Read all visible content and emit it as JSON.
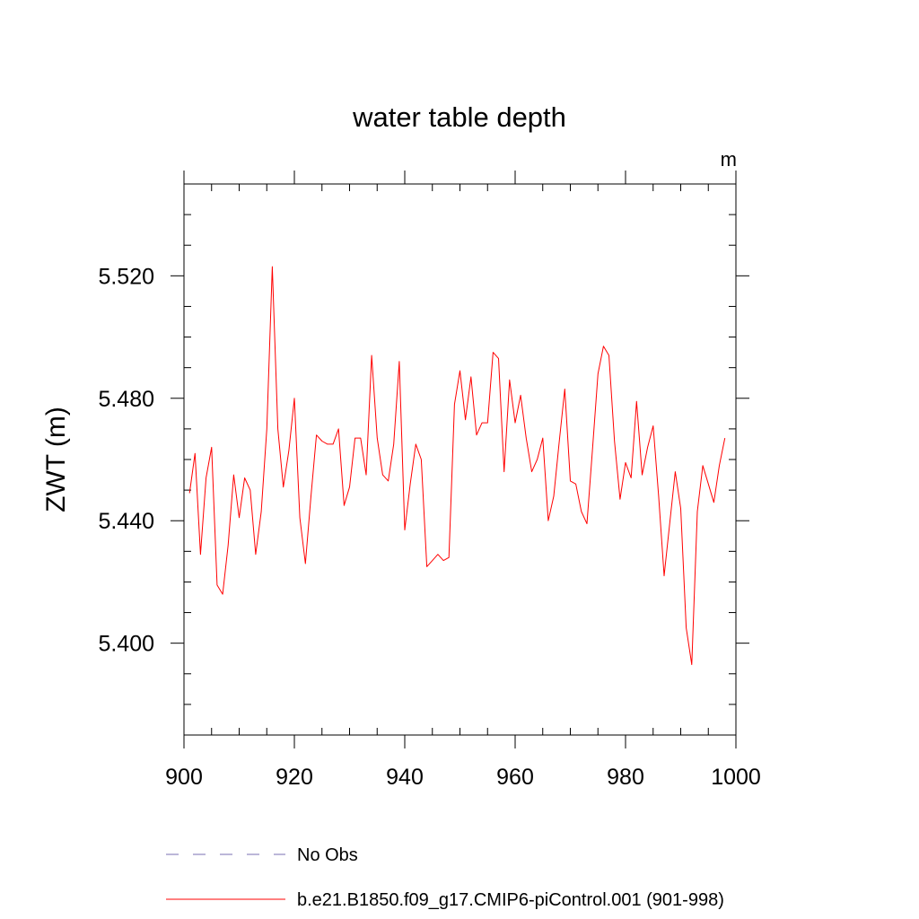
{
  "chart_data": {
    "type": "line",
    "title": "water table depth",
    "units": "m",
    "xlabel": "",
    "ylabel": "ZWT  (m)",
    "xlim": [
      900,
      1000
    ],
    "ylim": [
      5.37,
      5.55
    ],
    "x_ticks": [
      900,
      920,
      940,
      960,
      980,
      1000
    ],
    "x_tick_labels": [
      "900",
      "920",
      "940",
      "960",
      "980",
      "1000"
    ],
    "y_ticks": [
      5.4,
      5.44,
      5.48,
      5.52
    ],
    "y_tick_labels": [
      "5.400",
      "5.440",
      "5.480",
      "5.520"
    ],
    "grid": false,
    "legend_position": "bottom",
    "series": [
      {
        "name": "No Obs",
        "color": "#7a6fb3",
        "style": "dashed",
        "x": [],
        "y": []
      },
      {
        "name": "b.e21.B1850.f09_g17.CMIP6-piControl.001 (901-998)",
        "color": "#ff0000",
        "style": "solid",
        "x": [
          901,
          902,
          903,
          904,
          905,
          906,
          907,
          908,
          909,
          910,
          911,
          912,
          913,
          914,
          915,
          916,
          917,
          918,
          919,
          920,
          921,
          922,
          923,
          924,
          925,
          926,
          927,
          928,
          929,
          930,
          931,
          932,
          933,
          934,
          935,
          936,
          937,
          938,
          939,
          940,
          941,
          942,
          943,
          944,
          945,
          946,
          947,
          948,
          949,
          950,
          951,
          952,
          953,
          954,
          955,
          956,
          957,
          958,
          959,
          960,
          961,
          962,
          963,
          964,
          965,
          966,
          967,
          968,
          969,
          970,
          971,
          972,
          973,
          974,
          975,
          976,
          977,
          978,
          979,
          980,
          981,
          982,
          983,
          984,
          985,
          986,
          987,
          988,
          989,
          990,
          991,
          992,
          993,
          994,
          995,
          996,
          997,
          998
        ],
        "y": [
          5.449,
          5.462,
          5.429,
          5.454,
          5.464,
          5.419,
          5.416,
          5.432,
          5.455,
          5.441,
          5.454,
          5.45,
          5.429,
          5.443,
          5.47,
          5.523,
          5.47,
          5.451,
          5.463,
          5.48,
          5.441,
          5.426,
          5.448,
          5.468,
          5.466,
          5.465,
          5.465,
          5.47,
          5.445,
          5.451,
          5.467,
          5.467,
          5.455,
          5.494,
          5.467,
          5.455,
          5.453,
          5.465,
          5.492,
          5.437,
          5.452,
          5.465,
          5.46,
          5.425,
          5.427,
          5.429,
          5.427,
          5.428,
          5.478,
          5.489,
          5.473,
          5.487,
          5.468,
          5.472,
          5.472,
          5.495,
          5.493,
          5.456,
          5.486,
          5.472,
          5.481,
          5.467,
          5.456,
          5.46,
          5.467,
          5.44,
          5.448,
          5.466,
          5.483,
          5.453,
          5.452,
          5.443,
          5.439,
          5.463,
          5.488,
          5.497,
          5.494,
          5.466,
          5.447,
          5.459,
          5.454,
          5.479,
          5.455,
          5.464,
          5.471,
          5.448,
          5.422,
          5.439,
          5.456,
          5.444,
          5.405,
          5.393,
          5.443,
          5.458,
          5.452,
          5.446,
          5.458,
          5.467
        ]
      }
    ]
  }
}
